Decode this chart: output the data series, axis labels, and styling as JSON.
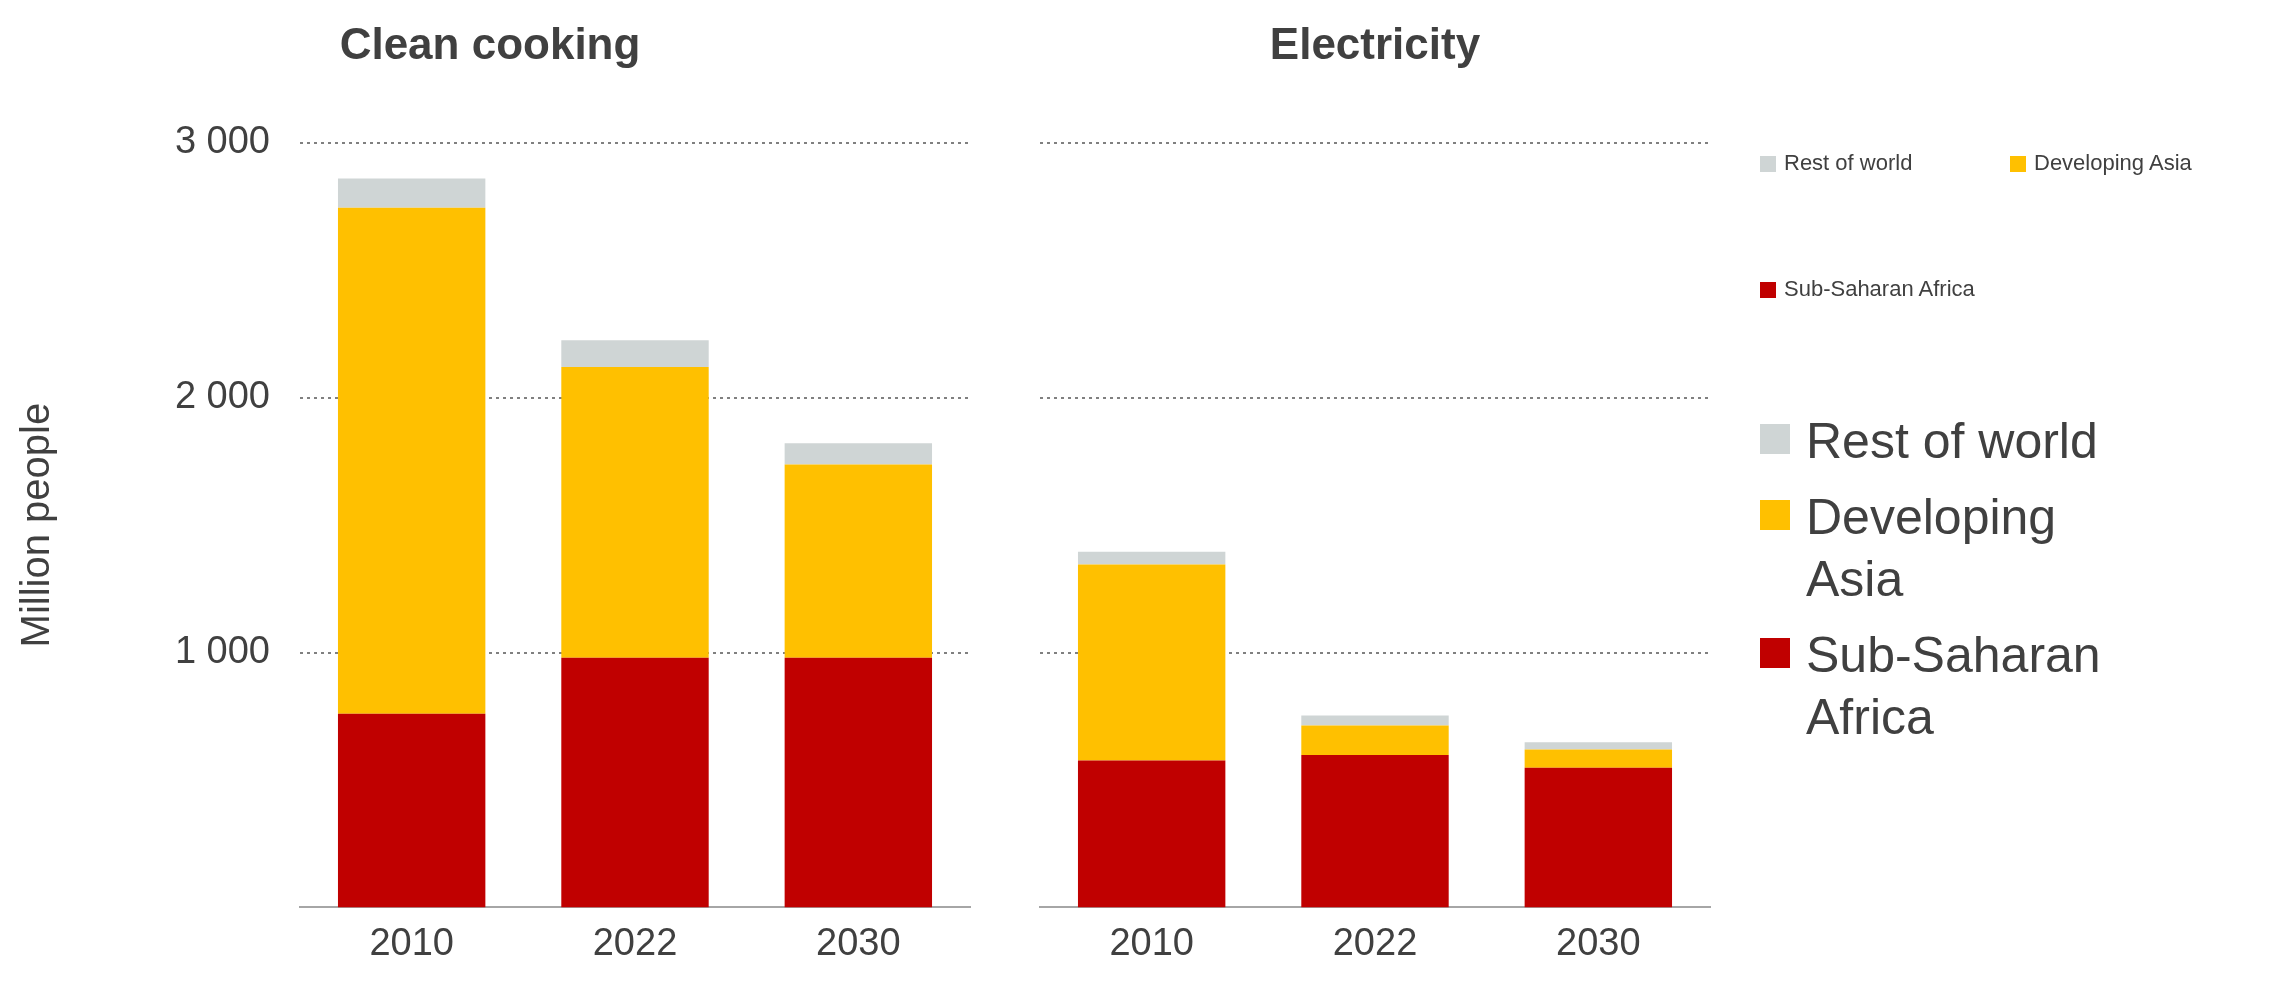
{
  "chart_data": [
    {
      "type": "bar",
      "title": "Clean cooking",
      "ylabel": "Million people",
      "categories": [
        "2010",
        "2022",
        "2030"
      ],
      "stacked": true,
      "ylim": [
        0,
        3000
      ],
      "yticks": [
        {
          "value": 1000,
          "label": "1 000"
        },
        {
          "value": 2000,
          "label": "2 000"
        },
        {
          "value": 3000,
          "label": "3 000"
        }
      ],
      "grid": "y",
      "legend": false,
      "series": [
        {
          "color": "#c00000",
          "values": [
            760,
            980,
            980
          ]
        },
        {
          "color": "#ffc000",
          "values": [
            1985,
            1140,
            758
          ]
        },
        {
          "color": "#cfd5d5",
          "values": [
            115,
            105,
            83
          ]
        }
      ]
    },
    {
      "type": "bar",
      "title": "Electricity",
      "categories": [
        "2010",
        "2022",
        "2030"
      ],
      "stacked": true,
      "ylim": [
        0,
        3000
      ],
      "yticks": [
        1000,
        2000,
        3000
      ],
      "grid": "y",
      "legend": "right",
      "tick_labels": "x",
      "series": [
        {
          "name": "Sub-Saharan Africa",
          "color": "#c00000",
          "values": [
            576,
            598,
            548
          ]
        },
        {
          "name": "Developing Asia",
          "color": "#ffc000",
          "values": [
            769,
            116,
            72
          ]
        },
        {
          "name": "Rest of world",
          "color": "#cfd5d5",
          "values": [
            50,
            39,
            28
          ]
        }
      ]
    }
  ]
}
